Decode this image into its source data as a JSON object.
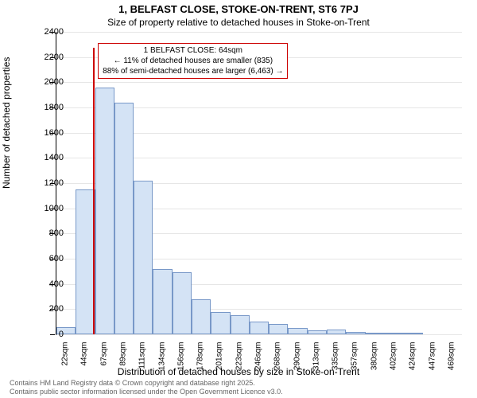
{
  "chart": {
    "type": "histogram",
    "title_main": "1, BELFAST CLOSE, STOKE-ON-TRENT, ST6 7PJ",
    "title_sub": "Size of property relative to detached houses in Stoke-on-Trent",
    "ylabel": "Number of detached properties",
    "xlabel": "Distribution of detached houses by size in Stoke-on-Trent",
    "ylim": [
      0,
      2400
    ],
    "ytick_step": 200,
    "yticks": [
      0,
      200,
      400,
      600,
      800,
      1000,
      1200,
      1400,
      1600,
      1800,
      2000,
      2200,
      2400
    ],
    "xticks": [
      "22sqm",
      "44sqm",
      "67sqm",
      "89sqm",
      "111sqm",
      "134sqm",
      "156sqm",
      "178sqm",
      "201sqm",
      "223sqm",
      "246sqm",
      "268sqm",
      "290sqm",
      "313sqm",
      "335sqm",
      "357sqm",
      "380sqm",
      "402sqm",
      "424sqm",
      "447sqm",
      "469sqm"
    ],
    "bar_color": "#d4e3f5",
    "bar_border_color": "#7898c8",
    "grid_color": "#e6e6e6",
    "background_color": "#ffffff",
    "values": [
      60,
      1150,
      1960,
      1840,
      1220,
      520,
      490,
      280,
      180,
      150,
      100,
      80,
      50,
      30,
      40,
      20,
      10,
      5,
      5,
      0,
      0
    ],
    "highlight_color": "#cc0000",
    "highlight_x_index": 1.9,
    "annotation": {
      "line1": "1 BELFAST CLOSE: 64sqm",
      "line2": "← 11% of detached houses are smaller (835)",
      "line3": "88% of semi-detached houses are larger (6,463) →"
    },
    "footer_line1": "Contains HM Land Registry data © Crown copyright and database right 2025.",
    "footer_line2": "Contains public sector information licensed under the Open Government Licence v3.0."
  }
}
